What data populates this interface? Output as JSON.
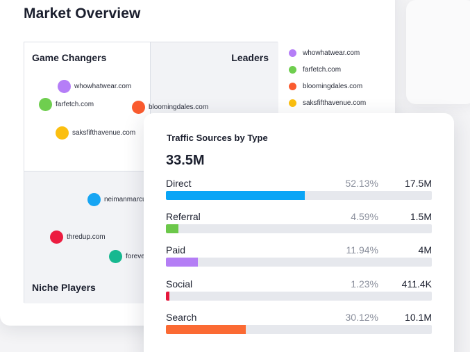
{
  "market_overview": {
    "title": "Market Overview",
    "quadrants": {
      "top_left": "Game Changers",
      "top_right": "Leaders",
      "bottom_left": "Niche Players"
    },
    "sites": [
      {
        "name": "whowhatwear.com",
        "color": "#b57ef7"
      },
      {
        "name": "farfetch.com",
        "color": "#6fce4f"
      },
      {
        "name": "bloomingdales.com",
        "color": "#fa5b2f"
      },
      {
        "name": "saksfifthavenue.com",
        "color": "#fbbf10"
      },
      {
        "name": "neimanmarcu",
        "color": "#17a5f3"
      },
      {
        "name": "thredup.com",
        "color": "#ec1c40"
      },
      {
        "name": "foreve",
        "color": "#17b890"
      }
    ],
    "legend": [
      {
        "label": "whowhatwear.com",
        "color": "#b57ef7"
      },
      {
        "label": "farfetch.com",
        "color": "#6fce4f"
      },
      {
        "label": "bloomingdales.com",
        "color": "#fa5b2f"
      },
      {
        "label": "saksfifthavenue.com",
        "color": "#fbbf10"
      }
    ]
  },
  "traffic": {
    "title": "Traffic Sources by Type",
    "total": "33.5M",
    "sources": [
      {
        "name": "Direct",
        "percent": "52.13%",
        "value": "17.5M",
        "share": 0.5213,
        "color": "#0aa5f6"
      },
      {
        "name": "Referral",
        "percent": "4.59%",
        "value": "1.5M",
        "share": 0.0459,
        "color": "#6cc84a"
      },
      {
        "name": "Paid",
        "percent": "11.94%",
        "value": "4M",
        "share": 0.1194,
        "color": "#b47ef5"
      },
      {
        "name": "Social",
        "percent": "1.23%",
        "value": "411.4K",
        "share": 0.0123,
        "color": "#e5173b"
      },
      {
        "name": "Search",
        "percent": "30.12%",
        "value": "10.1M",
        "share": 0.3012,
        "color": "#fb6a33"
      }
    ]
  }
}
